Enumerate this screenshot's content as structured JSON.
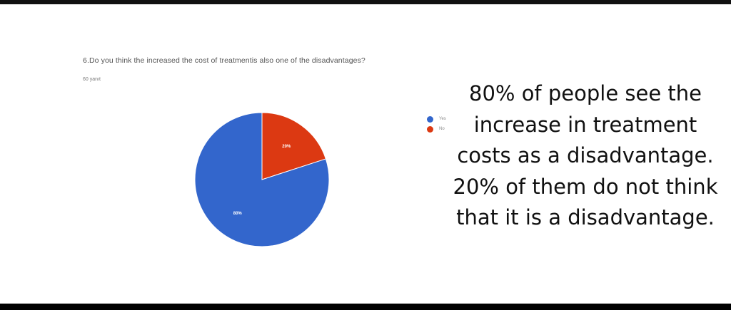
{
  "question": "6.Do you think the increased the cost of treatmentis also one of the disadvantages?",
  "responses": "60 yanıt",
  "chart_data": {
    "type": "pie",
    "categories": [
      "Yes",
      "No"
    ],
    "values": [
      80,
      20
    ],
    "labels": [
      "80%",
      "20%"
    ],
    "colors": [
      "#3366cc",
      "#dc3912"
    ],
    "legend": "right"
  },
  "annotation": "80% of people see the increase in treatment costs as a disadvantage. 20% of them do not think that it is a disadvantage."
}
